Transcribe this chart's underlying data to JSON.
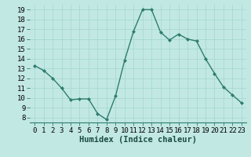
{
  "x": [
    0,
    1,
    2,
    3,
    4,
    5,
    6,
    7,
    8,
    9,
    10,
    11,
    12,
    13,
    14,
    15,
    16,
    17,
    18,
    19,
    20,
    21,
    22,
    23
  ],
  "y": [
    13.3,
    12.8,
    12.0,
    11.0,
    9.8,
    9.9,
    9.9,
    8.4,
    7.8,
    10.2,
    13.8,
    16.8,
    19.0,
    19.0,
    16.7,
    15.9,
    16.5,
    16.0,
    15.8,
    14.0,
    12.5,
    11.1,
    10.3,
    9.5
  ],
  "line_color": "#2e7d6e",
  "marker": "D",
  "marker_size": 2.0,
  "bg_color": "#c2e8e4",
  "grid_color": "#a8d8d4",
  "xlabel": "Humidex (Indice chaleur)",
  "xlim": [
    -0.5,
    23.5
  ],
  "ylim": [
    7.5,
    19.5
  ],
  "yticks": [
    8,
    9,
    10,
    11,
    12,
    13,
    14,
    15,
    16,
    17,
    18,
    19
  ],
  "xticks": [
    0,
    1,
    2,
    3,
    4,
    5,
    6,
    7,
    8,
    9,
    10,
    11,
    12,
    13,
    14,
    15,
    16,
    17,
    18,
    19,
    20,
    21,
    22,
    23
  ],
  "xtick_labels": [
    "0",
    "1",
    "2",
    "3",
    "4",
    "5",
    "6",
    "7",
    "8",
    "9",
    "10",
    "11",
    "12",
    "13",
    "14",
    "15",
    "16",
    "17",
    "18",
    "19",
    "20",
    "21",
    "22",
    "23"
  ],
  "xlabel_fontsize": 7.5,
  "tick_fontsize": 6.5,
  "linewidth": 1.0
}
